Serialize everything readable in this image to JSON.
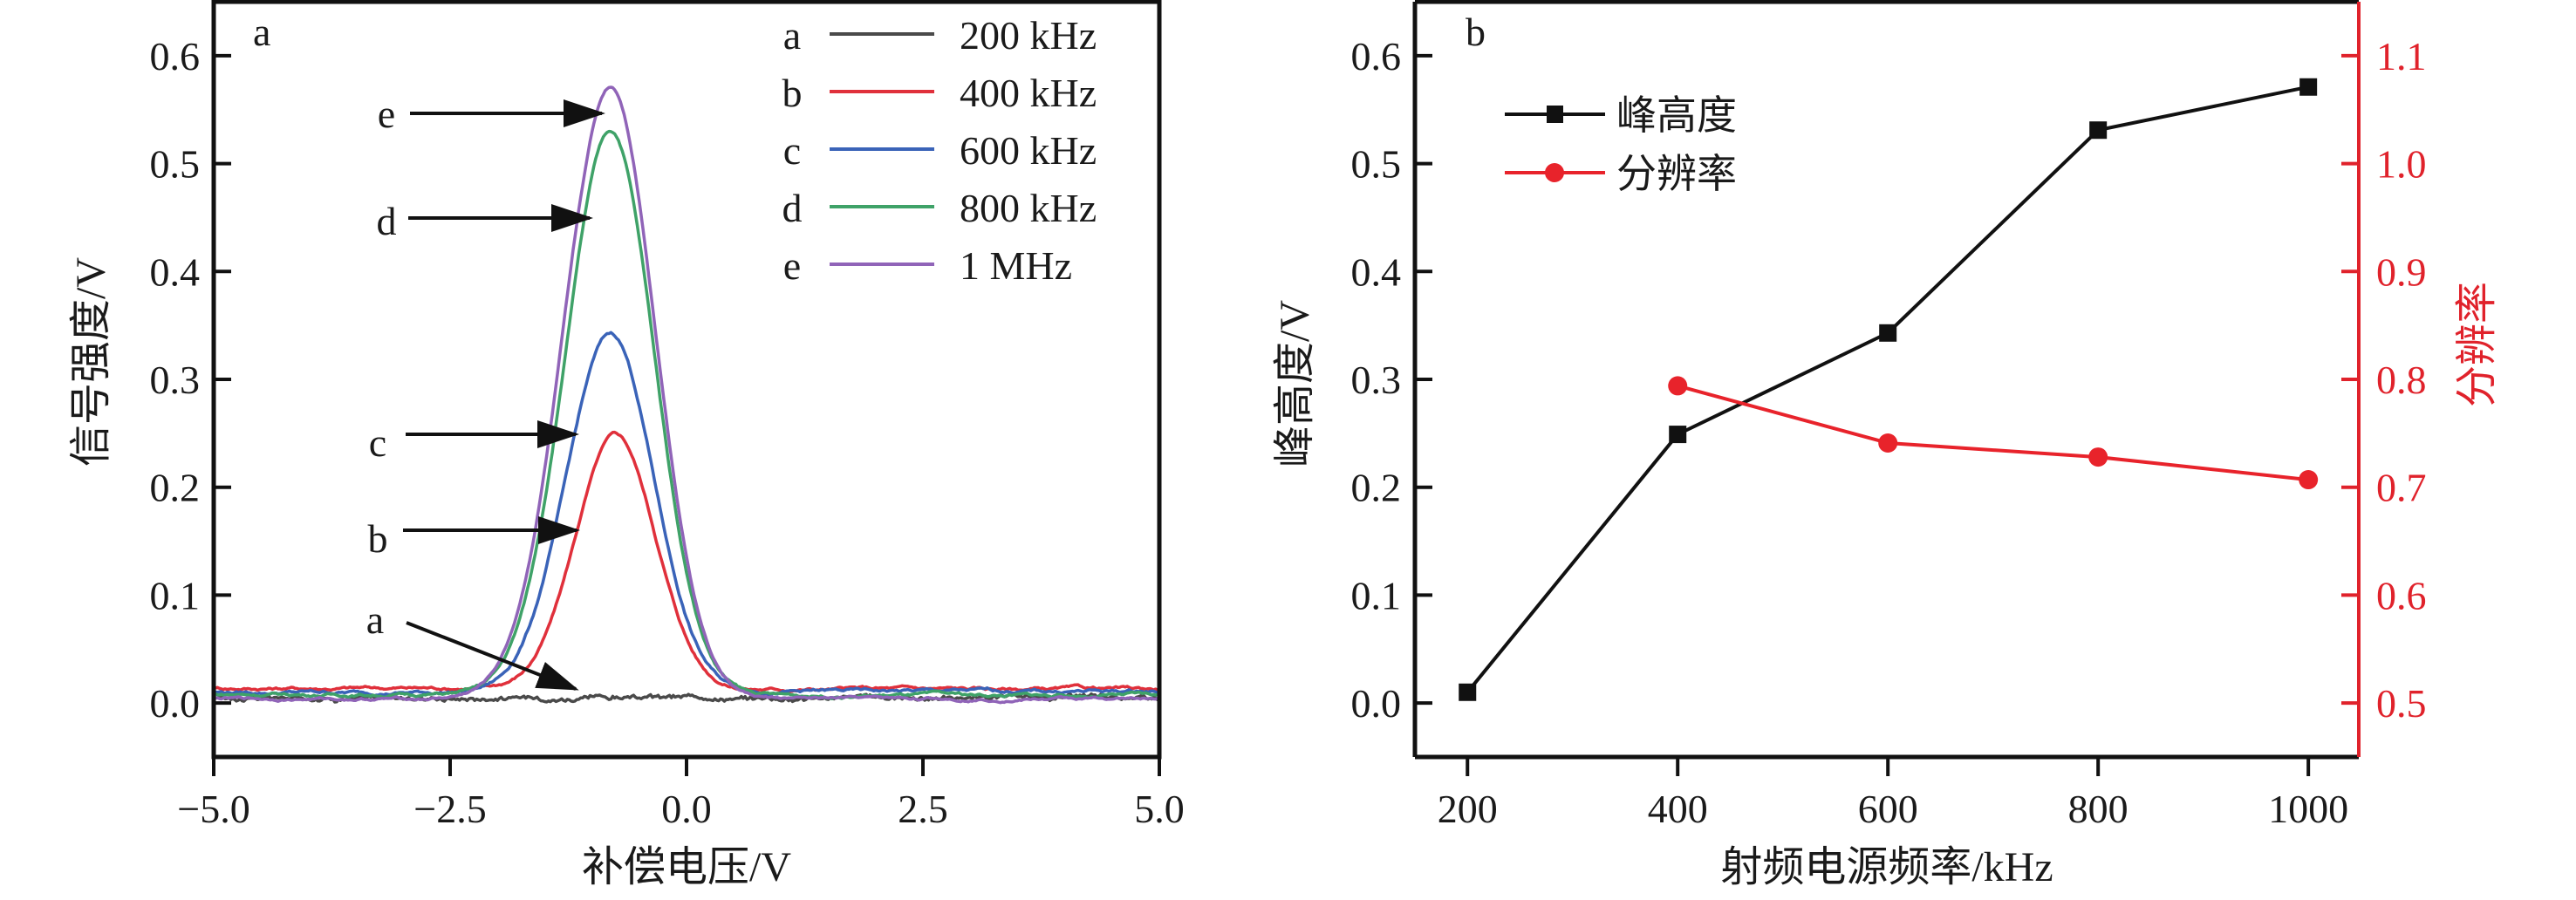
{
  "chart_data": [
    {
      "id": "a",
      "type": "line",
      "panel_label": "a",
      "title": "",
      "xlabel": "补偿电压/V",
      "ylabel": "信号强度/V",
      "xlim": [
        -5.0,
        5.0
      ],
      "ylim": [
        -0.05,
        0.65
      ],
      "xticks": [
        -5.0,
        -2.5,
        0.0,
        2.5,
        5.0
      ],
      "xtick_labels": [
        "−5.0",
        "−2.5",
        "0.0",
        "2.5",
        "5.0"
      ],
      "yticks": [
        0.0,
        0.1,
        0.2,
        0.3,
        0.4,
        0.5,
        0.6
      ],
      "ytick_labels": [
        "0.0",
        "0.1",
        "0.2",
        "0.3",
        "0.4",
        "0.5",
        "0.6"
      ],
      "grid": false,
      "legend_position": "top-right",
      "series": [
        {
          "key": "a",
          "name": "200 kHz",
          "color": "#4a4a4a",
          "peak_x": -0.8,
          "peak_y": 0.005,
          "sigma_left": 0.6,
          "sigma_right": 0.6,
          "baseline_left": 0.005,
          "baseline_right": 0.005,
          "noise": 0.0015
        },
        {
          "key": "b",
          "name": "400 kHz",
          "color": "#e0303b",
          "peak_x": -0.75,
          "peak_y": 0.248,
          "sigma_left": 0.42,
          "sigma_right": 0.42,
          "baseline_left": 0.014,
          "baseline_right": 0.013,
          "noise": 0.0015
        },
        {
          "key": "c",
          "name": "600 kHz",
          "color": "#3a63b8",
          "peak_x": -0.8,
          "peak_y": 0.342,
          "sigma_left": 0.47,
          "sigma_right": 0.45,
          "baseline_left": 0.01,
          "baseline_right": 0.011,
          "noise": 0.0015
        },
        {
          "key": "d",
          "name": "800 kHz",
          "color": "#3fa268",
          "peak_x": -0.8,
          "peak_y": 0.53,
          "sigma_left": 0.48,
          "sigma_right": 0.46,
          "baseline_left": 0.008,
          "baseline_right": 0.007,
          "noise": 0.0015
        },
        {
          "key": "e",
          "name": "1 MHz",
          "color": "#9064b8",
          "peak_x": -0.8,
          "peak_y": 0.571,
          "sigma_left": 0.5,
          "sigma_right": 0.47,
          "baseline_left": 0.004,
          "baseline_right": 0.004,
          "noise": 0.0012
        }
      ],
      "annotations": [
        {
          "text": "e",
          "target_series": "e",
          "target_y": 0.55
        },
        {
          "text": "d",
          "target_series": "d",
          "target_y": 0.45
        },
        {
          "text": "c",
          "target_series": "c",
          "target_y": 0.25
        },
        {
          "text": "b",
          "target_series": "b",
          "target_y": 0.16
        },
        {
          "text": "a",
          "target_series": "a",
          "target_y": 0.015
        }
      ]
    },
    {
      "id": "b",
      "type": "line",
      "panel_label": "b",
      "title": "",
      "xlabel": "射频电源频率/kHz",
      "ylabel": "峰高度/V",
      "ylabel_right": "分辨率",
      "xlim": [
        150,
        1048
      ],
      "ylim": [
        -0.05,
        0.65
      ],
      "ylim_right": [
        0.45,
        1.15
      ],
      "xticks": [
        200,
        400,
        600,
        800,
        1000
      ],
      "xtick_labels": [
        "200",
        "400",
        "600",
        "800",
        "1000"
      ],
      "yticks": [
        0.0,
        0.1,
        0.2,
        0.3,
        0.4,
        0.5,
        0.6
      ],
      "ytick_labels": [
        "0.0",
        "0.1",
        "0.2",
        "0.3",
        "0.4",
        "0.5",
        "0.6"
      ],
      "yticks_right": [
        0.5,
        0.6,
        0.7,
        0.8,
        0.9,
        1.0,
        1.1
      ],
      "ytick_labels_right": [
        "0.5",
        "0.6",
        "0.7",
        "0.8",
        "0.9",
        "1.0",
        "1.1"
      ],
      "right_axis_color": "#e0222b",
      "grid": false,
      "legend_position": "top-left",
      "series": [
        {
          "name": "峰高度",
          "axis": "left",
          "marker": "square",
          "color": "#111111",
          "x": [
            200,
            400,
            600,
            800,
            1000
          ],
          "values": [
            0.01,
            0.249,
            0.343,
            0.531,
            0.571
          ]
        },
        {
          "name": "分辨率",
          "axis": "right",
          "marker": "circle",
          "color": "#e8232b",
          "x": [
            400,
            600,
            800,
            1000
          ],
          "values": [
            0.794,
            0.741,
            0.728,
            0.707
          ]
        }
      ]
    }
  ]
}
